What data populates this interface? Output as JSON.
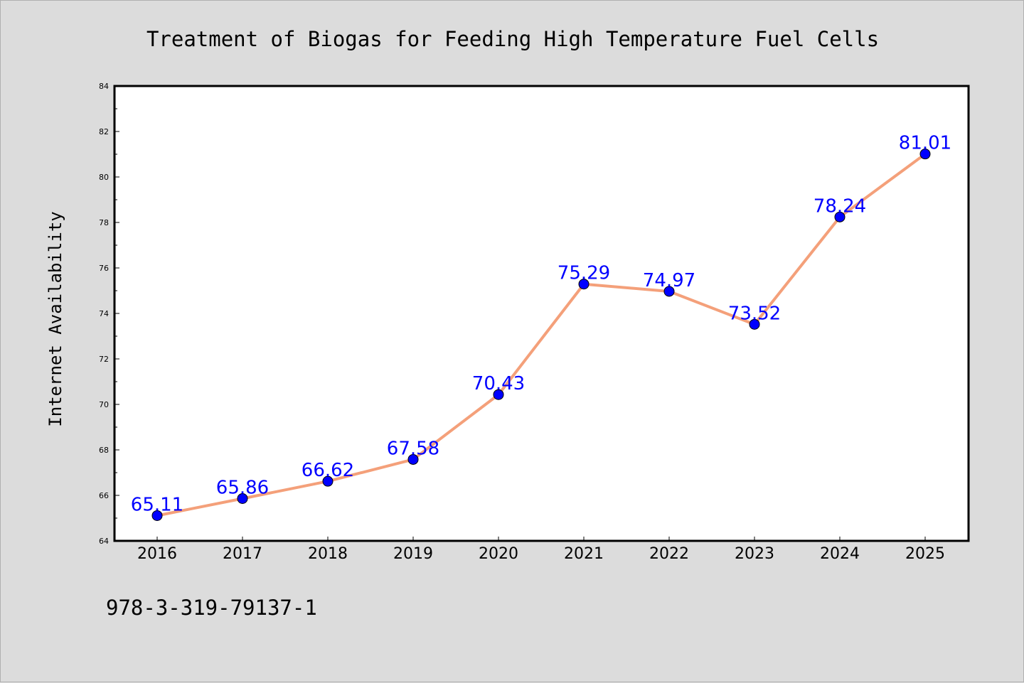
{
  "chart_data": {
    "type": "line",
    "title": "Treatment of Biogas for Feeding High Temperature Fuel Cells",
    "xlabel": "",
    "ylabel": "Internet Availability",
    "x": [
      "2016",
      "2017",
      "2018",
      "2019",
      "2020",
      "2021",
      "2022",
      "2023",
      "2024",
      "2025"
    ],
    "series": [
      {
        "values": [
          65.11,
          65.86,
          66.62,
          67.58,
          70.43,
          75.29,
          74.97,
          73.52,
          78.24,
          81.01
        ],
        "line_color": "#f4a07a",
        "marker_color": "#0000ff"
      }
    ],
    "ylim": [
      64,
      84
    ],
    "yticks": [
      64,
      66,
      68,
      70,
      72,
      74,
      76,
      78,
      80,
      82,
      84
    ],
    "grid": false,
    "data_labels": true,
    "label_color": "#0000ff"
  },
  "footnote": "978-3-319-79137-1"
}
